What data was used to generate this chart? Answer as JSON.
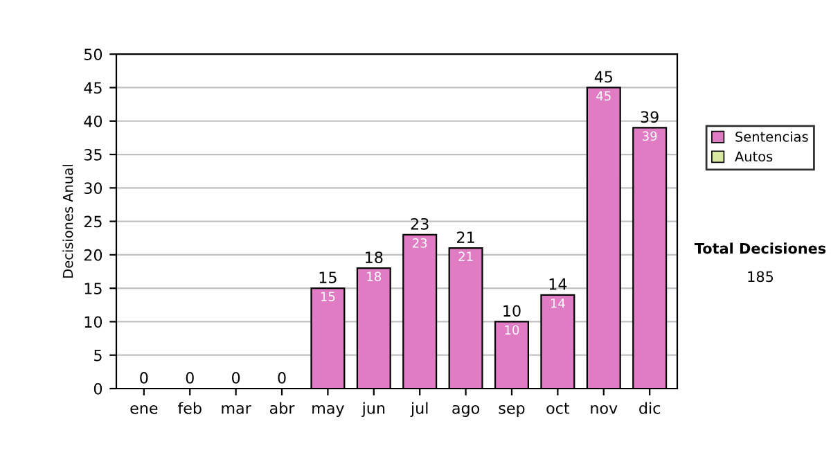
{
  "chart_data": {
    "type": "bar",
    "stacked": true,
    "ylabel": "Decisiones Anual",
    "categories": [
      "ene",
      "feb",
      "mar",
      "abr",
      "may",
      "jun",
      "jul",
      "ago",
      "sep",
      "oct",
      "nov",
      "dic"
    ],
    "series": [
      {
        "name": "Sentencias",
        "color": "#e07cc4",
        "values": [
          0,
          0,
          0,
          0,
          15,
          18,
          23,
          21,
          10,
          14,
          45,
          39
        ],
        "value_labels": [
          null,
          null,
          null,
          null,
          "15",
          "18",
          "23",
          "21",
          "10",
          "14",
          "45",
          "39"
        ]
      },
      {
        "name": "Autos",
        "color": "#d8e8a0",
        "values": [
          0,
          0,
          0,
          0,
          0,
          0,
          0,
          0,
          0,
          0,
          0,
          0
        ]
      }
    ],
    "totals": [
      "0",
      "0",
      "0",
      "0",
      "15",
      "18",
      "23",
      "21",
      "10",
      "14",
      "45",
      "39"
    ],
    "ylim": [
      0,
      50
    ],
    "yticks": [
      0,
      5,
      10,
      15,
      20,
      25,
      30,
      35,
      40,
      45,
      50
    ],
    "grid": "y",
    "legend": "right",
    "annotations": [
      "Total Decisiones",
      "185"
    ]
  }
}
